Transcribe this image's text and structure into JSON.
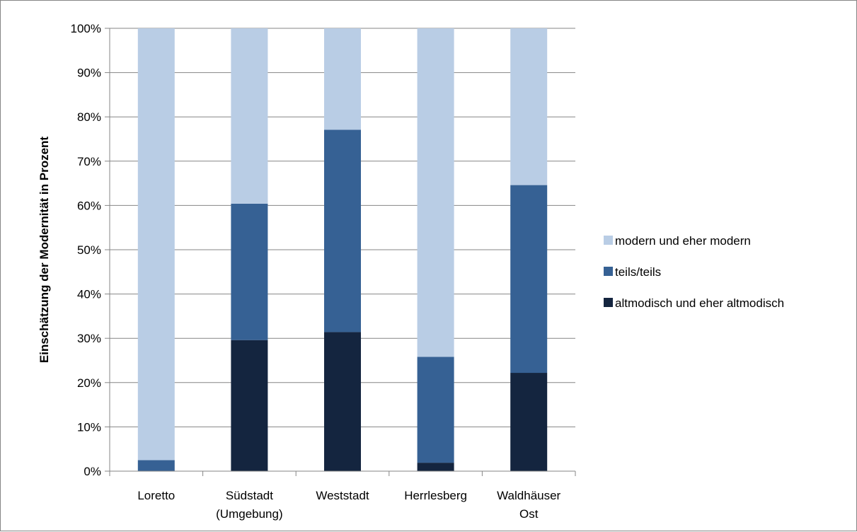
{
  "chart_data": {
    "type": "bar",
    "stacked": true,
    "percent_stacked": true,
    "categories": [
      [
        "Loretto"
      ],
      [
        "Südstadt",
        "(Umgebung)"
      ],
      [
        "Weststadt"
      ],
      [
        "Herrlesberg"
      ],
      [
        "Waldhäuser",
        "Ost"
      ]
    ],
    "series": [
      {
        "name": "altmodisch und eher altmodisch",
        "color": "#14253f",
        "values": [
          0,
          29.6,
          31.4,
          1.9,
          22.2
        ]
      },
      {
        "name": "teils/teils",
        "color": "#366194",
        "values": [
          2.5,
          30.8,
          45.7,
          23.9,
          42.4
        ]
      },
      {
        "name": "modern und eher modern",
        "color": "#b9cde5",
        "values": [
          97.5,
          39.6,
          22.9,
          74.2,
          35.4
        ]
      }
    ],
    "ylabel": "Einschätzung der Modernität in Prozent",
    "ylim": [
      0,
      100
    ],
    "yticks": [
      "0%",
      "10%",
      "20%",
      "30%",
      "40%",
      "50%",
      "60%",
      "70%",
      "80%",
      "90%",
      "100%"
    ],
    "grid": true,
    "legend_position": "right",
    "legend_order": [
      "modern und eher modern",
      "teils/teils",
      "altmodisch und eher altmodisch"
    ],
    "gridline_color": "#868686",
    "axis_color": "#868686"
  }
}
